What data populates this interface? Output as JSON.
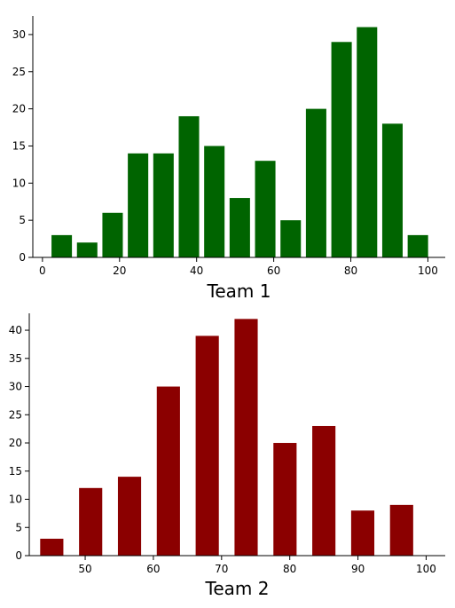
{
  "chart_data": [
    {
      "type": "bar",
      "xlabel": "Team 1",
      "ylabel": "",
      "color": "#006400",
      "bar_width": 5.3,
      "xlim": [
        -2.5,
        104.5
      ],
      "ylim": [
        0,
        32.5
      ],
      "xticks": [
        0,
        20,
        40,
        60,
        80,
        100
      ],
      "yticks": [
        0,
        5,
        10,
        15,
        20,
        25,
        30
      ],
      "grid": false,
      "spines": [
        "bottom",
        "left"
      ],
      "x": [
        5,
        11.6,
        18.2,
        24.8,
        31.4,
        38,
        44.6,
        51.2,
        57.8,
        64.4,
        71,
        77.6,
        84.2,
        90.8,
        97.4
      ],
      "values": [
        3,
        2,
        6,
        14,
        14,
        19,
        15,
        8,
        13,
        5,
        20,
        29,
        31,
        18,
        3
      ]
    },
    {
      "type": "bar",
      "xlabel": "Team 2",
      "ylabel": "",
      "color": "#8b0000",
      "bar_width": 3.4,
      "xlim": [
        41.8,
        102.8
      ],
      "ylim": [
        0,
        43
      ],
      "xticks": [
        50,
        60,
        70,
        80,
        90,
        100
      ],
      "yticks": [
        0,
        5,
        10,
        15,
        20,
        25,
        30,
        35,
        40
      ],
      "grid": false,
      "spines": [
        "bottom",
        "left"
      ],
      "x": [
        45.1,
        50.8,
        56.5,
        62.2,
        67.9,
        73.6,
        79.3,
        85,
        90.7,
        96.4
      ],
      "values": [
        3,
        12,
        14,
        30,
        39,
        42,
        20,
        23,
        8,
        9
      ]
    }
  ]
}
